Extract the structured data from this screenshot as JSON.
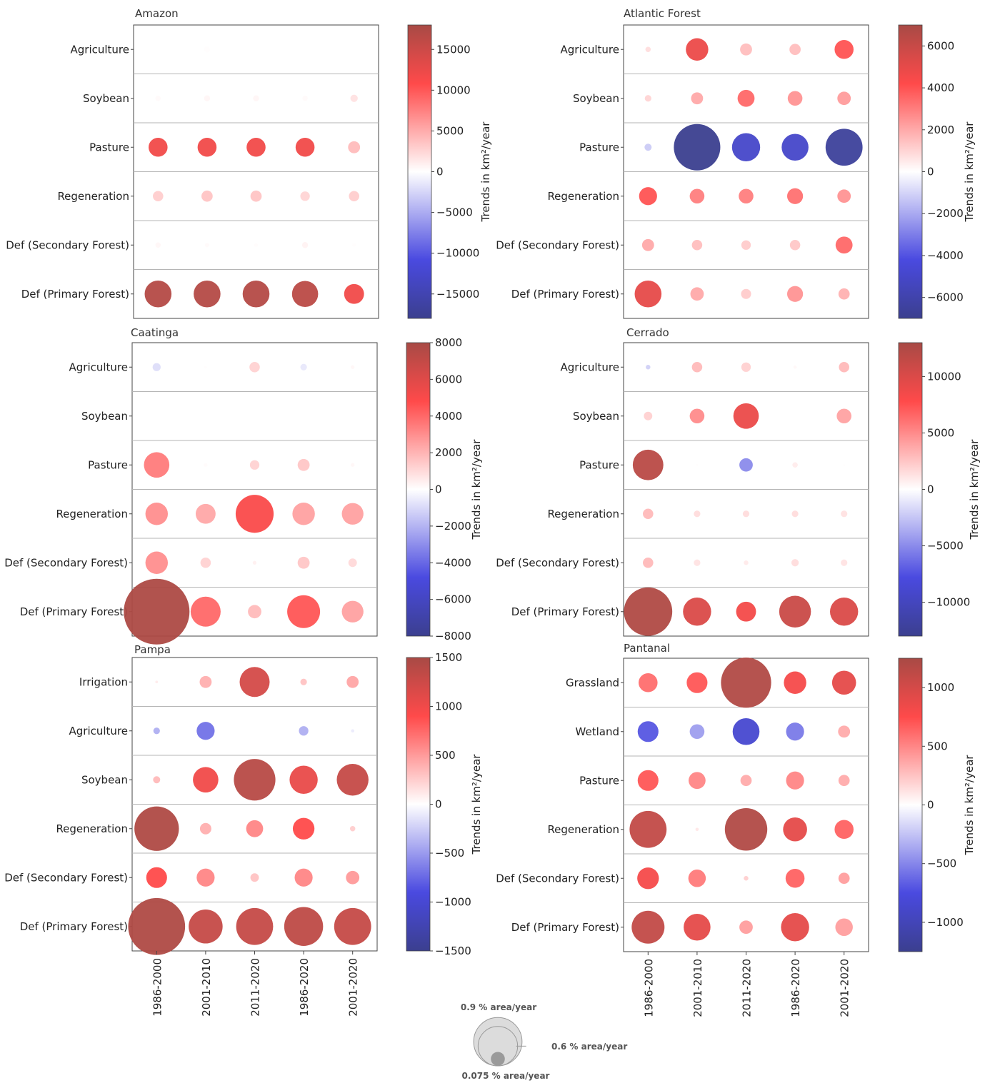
{
  "chart_data": [
    {
      "type": "bubble",
      "title": "Amazon",
      "categories": [
        "Agriculture",
        "Soybean",
        "Pasture",
        "Regeneration",
        "Def (Secondary Forest)",
        "Def (Primary Forest)"
      ],
      "periods": [
        "1986-2000",
        "2001-2010",
        "2011-2020",
        "1986-2020",
        "2001-2020"
      ],
      "colorbar": {
        "label": "Trends in km²/year",
        "range": [
          -18000,
          18000
        ],
        "ticks": [
          15000,
          10000,
          5000,
          0,
          -5000,
          -10000,
          -15000
        ]
      },
      "values": [
        [
          0,
          100,
          0,
          0,
          0
        ],
        [
          300,
          600,
          600,
          300,
          1800
        ],
        [
          12000,
          12000,
          12000,
          12000,
          4000
        ],
        [
          3000,
          3500,
          3500,
          2500,
          3000
        ],
        [
          500,
          300,
          200,
          800,
          100
        ],
        [
          17000,
          17000,
          17000,
          16500,
          12000
        ]
      ],
      "sizes": [
        [
          0,
          0.01,
          0,
          0,
          0
        ],
        [
          0.008,
          0.01,
          0.01,
          0.008,
          0.015
        ],
        [
          0.1,
          0.1,
          0.1,
          0.1,
          0.04
        ],
        [
          0.03,
          0.035,
          0.035,
          0.025,
          0.03
        ],
        [
          0.008,
          0.005,
          0.004,
          0.01,
          0.004
        ],
        [
          0.2,
          0.2,
          0.2,
          0.19,
          0.11
        ]
      ]
    },
    {
      "type": "bubble",
      "title": "Atlantic Forest",
      "categories": [
        "Agriculture",
        "Soybean",
        "Pasture",
        "Regeneration",
        "Def (Secondary Forest)",
        "Def (Primary Forest)"
      ],
      "periods": [
        "1986-2000",
        "2001-2010",
        "2011-2020",
        "1986-2020",
        "2001-2020"
      ],
      "colorbar": {
        "label": "Trends in km²/year",
        "range": [
          -7000,
          7000
        ],
        "ticks": [
          6000,
          4000,
          2000,
          0,
          -2000,
          -4000,
          -6000
        ]
      },
      "values": [
        [
          800,
          4800,
          1500,
          1500,
          4000
        ],
        [
          1000,
          2000,
          3500,
          2500,
          2300
        ],
        [
          -1200,
          -7000,
          -5000,
          -5000,
          -6600
        ],
        [
          4000,
          3000,
          3000,
          3300,
          2500
        ],
        [
          2000,
          1500,
          1200,
          1300,
          3500
        ],
        [
          5000,
          2000,
          1200,
          2500,
          1800
        ]
      ],
      "sizes": [
        [
          0.008,
          0.14,
          0.04,
          0.035,
          0.1
        ],
        [
          0.012,
          0.04,
          0.08,
          0.06,
          0.05
        ],
        [
          0.014,
          0.6,
          0.22,
          0.2,
          0.38
        ],
        [
          0.09,
          0.06,
          0.06,
          0.07,
          0.05
        ],
        [
          0.04,
          0.03,
          0.025,
          0.03,
          0.08
        ],
        [
          0.2,
          0.05,
          0.028,
          0.07,
          0.035
        ]
      ]
    },
    {
      "type": "bubble",
      "title": "Caatinga",
      "categories": [
        "Agriculture",
        "Soybean",
        "Pasture",
        "Regeneration",
        "Def (Secondary Forest)",
        "Def (Primary Forest)"
      ],
      "periods": [
        "1986-2000",
        "2001-2010",
        "2011-2020",
        "1986-2020",
        "2001-2020"
      ],
      "colorbar": {
        "label": "Trends in km²/year",
        "range": [
          -8000,
          8000
        ],
        "ticks": [
          8000,
          6000,
          4000,
          2000,
          0,
          -2000,
          -4000,
          -6000,
          -8000
        ]
      },
      "values": [
        [
          -900,
          50,
          1200,
          -600,
          200
        ],
        [
          0,
          0,
          0,
          0,
          0
        ],
        [
          3500,
          100,
          1200,
          1500,
          200
        ],
        [
          3000,
          2300,
          5000,
          2500,
          2500
        ],
        [
          3000,
          1200,
          400,
          1500,
          1000
        ],
        [
          7800,
          4000,
          1800,
          4500,
          2500
        ]
      ],
      "sizes": [
        [
          0.018,
          0.002,
          0.03,
          0.012,
          0.004
        ],
        [
          0,
          0,
          0,
          0,
          0
        ],
        [
          0.18,
          0.004,
          0.025,
          0.04,
          0.004
        ],
        [
          0.14,
          0.11,
          0.4,
          0.14,
          0.13
        ],
        [
          0.14,
          0.03,
          0.004,
          0.04,
          0.02
        ],
        [
          1.2,
          0.25,
          0.05,
          0.3,
          0.13
        ]
      ]
    },
    {
      "type": "bubble",
      "title": "Cerrado",
      "categories": [
        "Agriculture",
        "Soybean",
        "Pasture",
        "Regeneration",
        "Def (Secondary Forest)",
        "Def (Primary Forest)"
      ],
      "periods": [
        "1986-2000",
        "2001-2010",
        "2011-2020",
        "1986-2020",
        "2001-2020"
      ],
      "colorbar": {
        "label": "Trends in km²/year",
        "range": [
          -13000,
          13000
        ],
        "ticks": [
          10000,
          5000,
          0,
          -5000,
          -10000
        ],
        "tick_labels": [
          "10000",
          "5000",
          "0",
          "−5000",
          "−10000"
        ]
      },
      "values": [
        [
          -2000,
          3000,
          2000,
          300,
          3000
        ],
        [
          2000,
          5000,
          9000,
          0,
          4000
        ],
        [
          12000,
          100,
          -5000,
          800,
          100
        ],
        [
          3000,
          1500,
          1500,
          1500,
          1300
        ],
        [
          3000,
          1200,
          900,
          1500,
          1200
        ],
        [
          12500,
          10000,
          8500,
          11000,
          10000
        ]
      ],
      "sizes": [
        [
          0.006,
          0.03,
          0.025,
          0.003,
          0.03
        ],
        [
          0.02,
          0.06,
          0.18,
          0,
          0.06
        ],
        [
          0.26,
          0.001,
          0.05,
          0.008,
          0.001
        ],
        [
          0.03,
          0.012,
          0.012,
          0.012,
          0.012
        ],
        [
          0.03,
          0.012,
          0.006,
          0.015,
          0.012
        ],
        [
          0.65,
          0.22,
          0.11,
          0.28,
          0.22
        ]
      ]
    },
    {
      "type": "bubble",
      "title": "Pampa",
      "categories": [
        "Irrigation",
        "Agriculture",
        "Soybean",
        "Regeneration",
        "Def (Secondary Forest)",
        "Def (Primary Forest)"
      ],
      "periods": [
        "1986-2000",
        "2001-2010",
        "2011-2020",
        "1986-2020",
        "2001-2020"
      ],
      "colorbar": {
        "label": "Trends in km²/year",
        "range": [
          -1500,
          1500
        ],
        "ticks": [
          1500,
          1000,
          500,
          0,
          -500,
          -1000,
          -1500
        ]
      },
      "values": [
        [
          100,
          400,
          1200,
          300,
          450
        ],
        [
          -400,
          -700,
          0,
          -400,
          -100
        ],
        [
          350,
          1000,
          1400,
          1050,
          1300
        ],
        [
          1450,
          400,
          600,
          900,
          250
        ],
        [
          900,
          600,
          300,
          600,
          500
        ],
        [
          1450,
          1300,
          1300,
          1350,
          1300
        ]
      ],
      "sizes": [
        [
          0.002,
          0.04,
          0.25,
          0.012,
          0.04
        ],
        [
          0.012,
          0.09,
          0,
          0.025,
          0.003
        ],
        [
          0.014,
          0.18,
          0.48,
          0.22,
          0.28
        ],
        [
          0.55,
          0.036,
          0.08,
          0.13,
          0.008
        ],
        [
          0.12,
          0.09,
          0.02,
          0.09,
          0.05
        ],
        [
          0.9,
          0.32,
          0.38,
          0.42,
          0.38
        ]
      ]
    },
    {
      "type": "bubble",
      "title": "Pantanal",
      "categories": [
        "Grassland",
        "Wetland",
        "Pasture",
        "Regeneration",
        "Def (Secondary Forest)",
        "Def (Primary Forest)"
      ],
      "periods": [
        "1986-2000",
        "2001-2010",
        "2011-2020",
        "1986-2020",
        "2001-2020"
      ],
      "colorbar": {
        "label": "Trends in km²/year",
        "range": [
          -1250,
          1250
        ],
        "ticks": [
          1000,
          500,
          0,
          -500,
          -1000
        ]
      },
      "values": [
        [
          600,
          700,
          1200,
          800,
          900
        ],
        [
          -700,
          -400,
          -850,
          -550,
          350
        ],
        [
          700,
          500,
          350,
          500,
          350
        ],
        [
          1100,
          100,
          1200,
          900,
          650
        ],
        [
          800,
          550,
          200,
          650,
          400
        ],
        [
          1100,
          900,
          400,
          900,
          400
        ]
      ],
      "sizes": [
        [
          0.1,
          0.12,
          0.7,
          0.14,
          0.16
        ],
        [
          0.12,
          0.06,
          0.2,
          0.09,
          0.04
        ],
        [
          0.12,
          0.08,
          0.035,
          0.09,
          0.035
        ],
        [
          0.38,
          0.003,
          0.5,
          0.16,
          0.1
        ],
        [
          0.13,
          0.085,
          0.006,
          0.1,
          0.035
        ],
        [
          0.3,
          0.2,
          0.05,
          0.22,
          0.085
        ]
      ]
    }
  ],
  "legend": {
    "items": [
      {
        "label": "0.9 % area/year",
        "value": 0.9
      },
      {
        "label": "0.6 % area/year",
        "value": 0.6
      },
      {
        "label": "0.075 % area/year",
        "value": 0.075
      }
    ],
    "fill": "#dcdcdc",
    "inner_fill": "#9a9a9a"
  },
  "colors": {
    "neg_end": "#3b3f8f",
    "neg_mid": "#4a4ae0",
    "zero": "#ffffff",
    "pos_mid": "#ff4a4a",
    "pos_end": "#a84a45"
  }
}
